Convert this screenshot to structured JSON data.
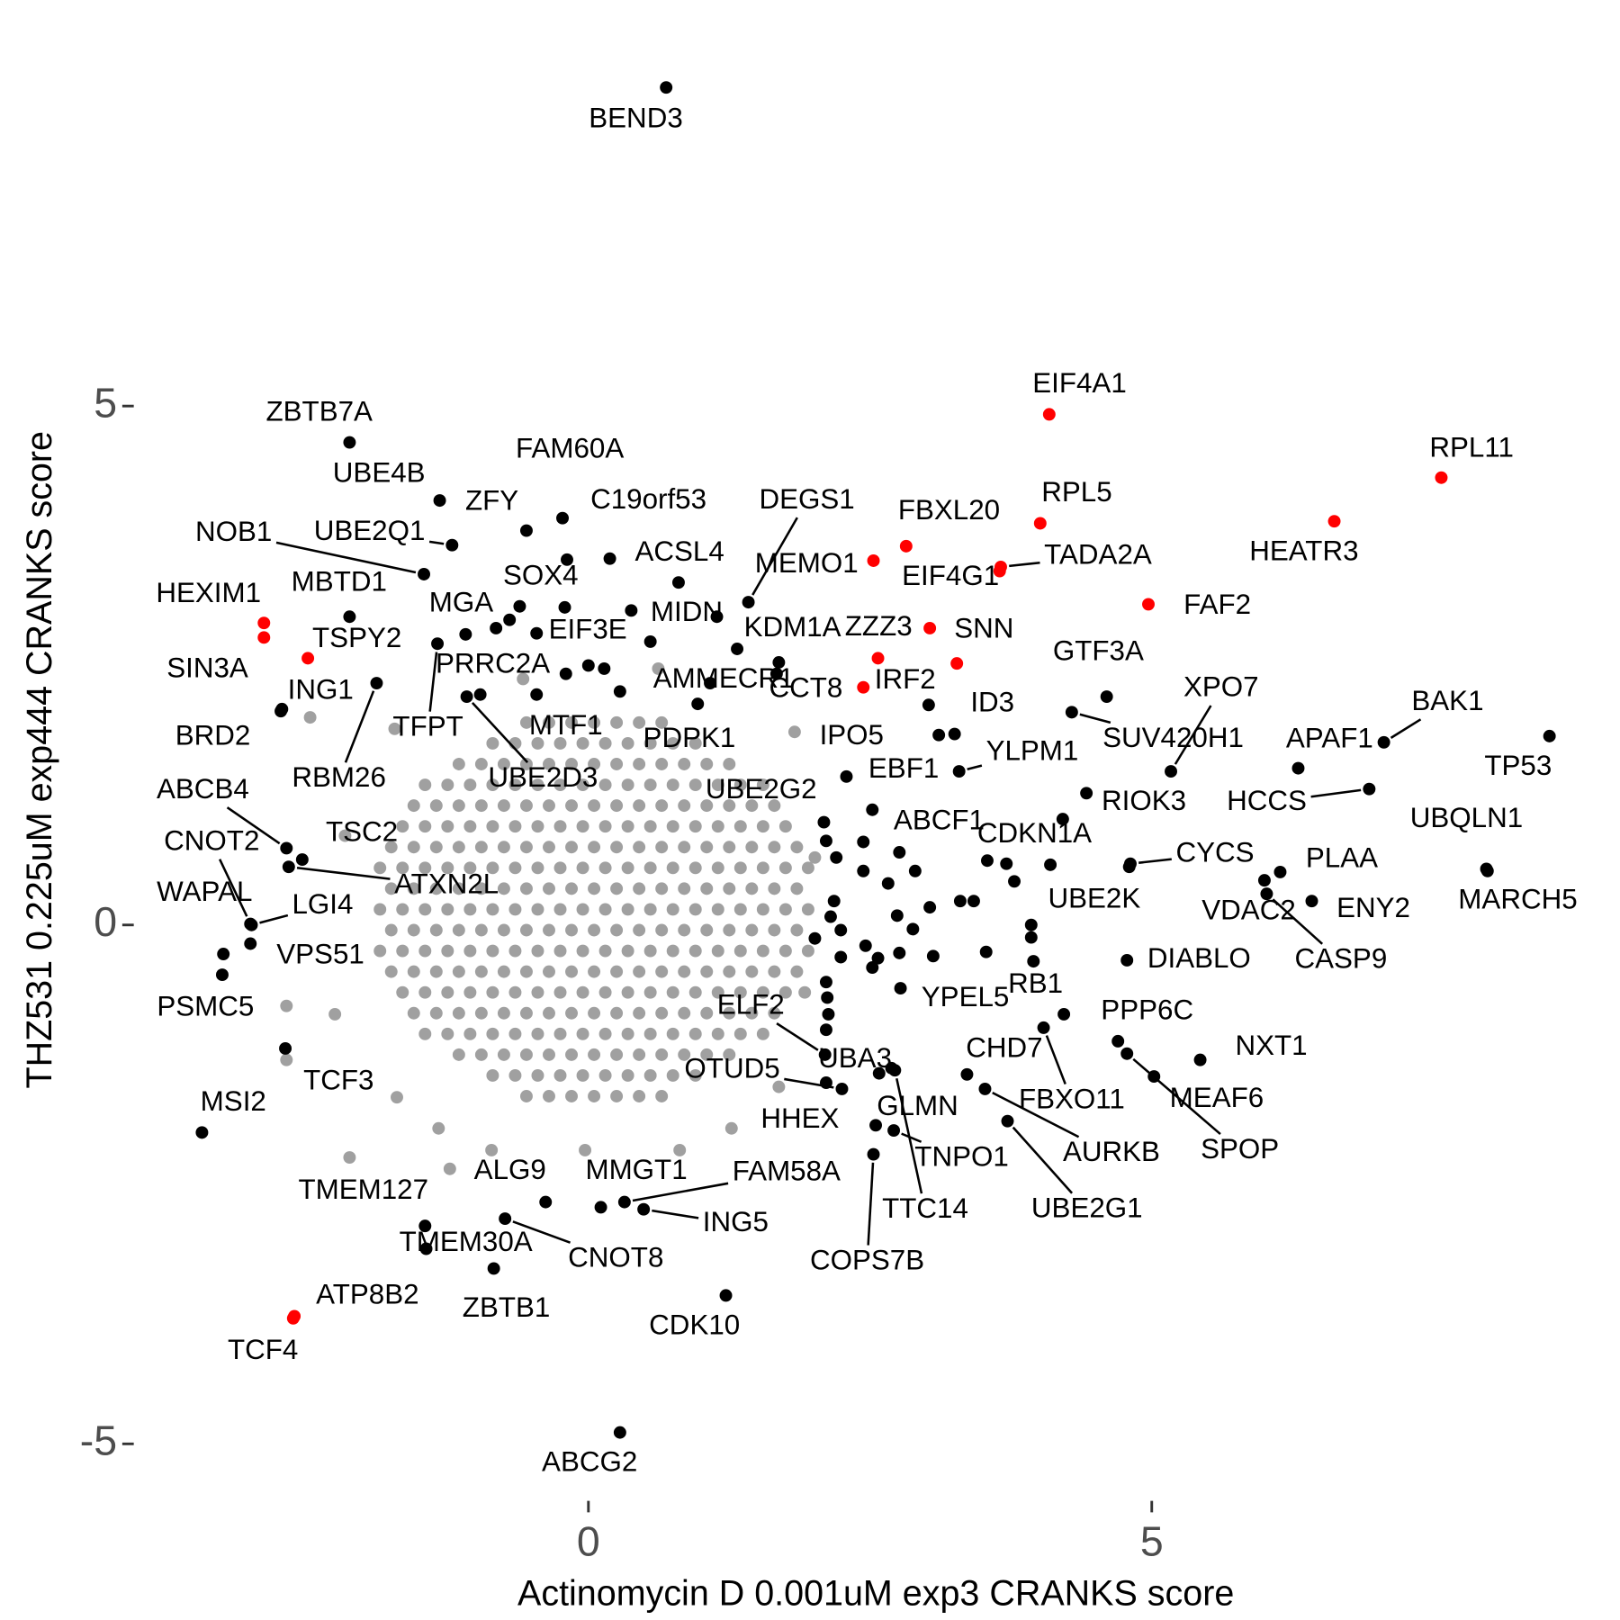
{
  "chart_data": {
    "type": "scatter",
    "xlabel": "Actinomycin D 0.001uM exp3 CRANKS score",
    "ylabel": "THZ531 0.225uM exp444 CRANKS score",
    "xlim": [
      -4,
      9
    ],
    "ylim": [
      -5.4,
      8.4
    ],
    "xticks": [
      0,
      5
    ],
    "yticks": [
      -5,
      0,
      5
    ],
    "grid": false,
    "series": [
      {
        "color": "#a0a0a0",
        "x": [
          -0.55,
          -0.35,
          -0.15,
          0.05,
          0.25,
          0.45,
          0.65,
          -0.85,
          -0.65,
          -0.45,
          -0.25,
          -0.05,
          0.15,
          0.35,
          0.55,
          0.75,
          0.95,
          -1.15,
          -0.95,
          -0.75,
          -0.55,
          -0.35,
          -0.15,
          0.05,
          0.25,
          0.45,
          0.65,
          0.85,
          1.05,
          1.25,
          -1.45,
          -1.25,
          -1.05,
          -0.85,
          -0.65,
          -0.45,
          -0.25,
          -0.05,
          0.15,
          0.35,
          0.55,
          0.75,
          0.95,
          1.15,
          1.35,
          1.55,
          -1.55,
          -1.35,
          -1.15,
          -0.95,
          -0.75,
          -0.55,
          -0.35,
          -0.15,
          0.05,
          0.25,
          0.45,
          0.65,
          0.85,
          1.05,
          1.25,
          1.45,
          1.65,
          -1.65,
          -1.45,
          -1.25,
          -1.05,
          -0.85,
          -0.65,
          -0.45,
          -0.25,
          -0.05,
          0.15,
          0.35,
          0.55,
          0.75,
          0.95,
          1.15,
          1.35,
          1.55,
          1.75,
          -1.75,
          -1.55,
          -1.35,
          -1.15,
          -0.95,
          -0.75,
          -0.55,
          -0.35,
          -0.15,
          0.05,
          0.25,
          0.45,
          0.65,
          0.85,
          1.05,
          1.25,
          1.45,
          1.65,
          1.85,
          -1.85,
          -1.65,
          -1.45,
          -1.25,
          -1.05,
          -0.85,
          -0.65,
          -0.45,
          -0.25,
          -0.05,
          0.15,
          0.35,
          0.55,
          0.75,
          0.95,
          1.15,
          1.35,
          1.55,
          1.75,
          1.95,
          -1.75,
          -1.55,
          -1.35,
          -1.15,
          -0.95,
          -0.75,
          -0.55,
          -0.35,
          -0.15,
          0.05,
          0.25,
          0.45,
          0.65,
          0.85,
          1.05,
          1.25,
          1.45,
          1.65,
          1.85,
          -1.85,
          -1.65,
          -1.45,
          -1.25,
          -1.05,
          -0.85,
          -0.65,
          -0.45,
          -0.25,
          -0.05,
          0.15,
          0.35,
          0.55,
          0.75,
          0.95,
          1.15,
          1.35,
          1.55,
          1.75,
          1.95,
          -1.75,
          -1.55,
          -1.35,
          -1.15,
          -0.95,
          -0.75,
          -0.55,
          -0.35,
          -0.15,
          0.05,
          0.25,
          0.45,
          0.65,
          0.85,
          1.05,
          1.25,
          1.45,
          1.65,
          1.85,
          -1.85,
          -1.65,
          -1.45,
          -1.25,
          -1.05,
          -0.85,
          -0.65,
          -0.45,
          -0.25,
          -0.05,
          0.15,
          0.35,
          0.55,
          0.75,
          0.95,
          1.15,
          1.35,
          1.55,
          1.75,
          1.95,
          -1.75,
          -1.55,
          -1.35,
          -1.15,
          -0.95,
          -0.75,
          -0.55,
          -0.35,
          -0.15,
          0.05,
          0.25,
          0.45,
          0.65,
          0.85,
          1.05,
          1.25,
          1.45,
          1.65,
          1.85,
          -1.65,
          -1.45,
          -1.25,
          -1.05,
          -0.85,
          -0.65,
          -0.45,
          -0.25,
          -0.05,
          0.15,
          0.35,
          0.55,
          0.75,
          0.95,
          1.15,
          1.35,
          1.55,
          1.75,
          -1.55,
          -1.35,
          -1.15,
          -0.95,
          -0.75,
          -0.55,
          -0.35,
          -0.15,
          0.05,
          0.25,
          0.45,
          0.65,
          0.85,
          1.05,
          1.25,
          1.45,
          1.65,
          -1.45,
          -1.25,
          -1.05,
          -0.85,
          -0.65,
          -0.45,
          -0.25,
          -0.05,
          0.15,
          0.35,
          0.55,
          0.75,
          0.95,
          1.15,
          1.35,
          1.55,
          -1.15,
          -0.95,
          -0.75,
          -0.55,
          -0.35,
          -0.15,
          0.05,
          0.25,
          0.45,
          0.65,
          0.85,
          1.05,
          1.25,
          -0.85,
          -0.65,
          -0.45,
          -0.25,
          -0.05,
          0.15,
          0.35,
          0.55,
          0.75,
          0.95,
          -0.55,
          -0.35,
          -0.15,
          0.05,
          0.25,
          0.45,
          0.65,
          -2.47,
          -2.68,
          -2.68,
          -2.12,
          -1.23,
          -1.72,
          -1.7,
          -1.33,
          1.83,
          1.69,
          1.27,
          -2.16,
          -2.25,
          2.01,
          1.92,
          -0.58,
          0.62,
          -0.03,
          -0.86,
          0.81
        ],
        "y": [
          -1.65,
          -1.65,
          -1.65,
          -1.65,
          -1.65,
          -1.65,
          -1.65,
          -1.45,
          -1.45,
          -1.45,
          -1.45,
          -1.45,
          -1.45,
          -1.45,
          -1.45,
          -1.45,
          -1.45,
          -1.25,
          -1.25,
          -1.25,
          -1.25,
          -1.25,
          -1.25,
          -1.25,
          -1.25,
          -1.25,
          -1.25,
          -1.25,
          -1.25,
          -1.25,
          -1.05,
          -1.05,
          -1.05,
          -1.05,
          -1.05,
          -1.05,
          -1.05,
          -1.05,
          -1.05,
          -1.05,
          -1.05,
          -1.05,
          -1.05,
          -1.05,
          -1.05,
          -1.05,
          -0.85,
          -0.85,
          -0.85,
          -0.85,
          -0.85,
          -0.85,
          -0.85,
          -0.85,
          -0.85,
          -0.85,
          -0.85,
          -0.85,
          -0.85,
          -0.85,
          -0.85,
          -0.85,
          -0.85,
          -0.65,
          -0.65,
          -0.65,
          -0.65,
          -0.65,
          -0.65,
          -0.65,
          -0.65,
          -0.65,
          -0.65,
          -0.65,
          -0.65,
          -0.65,
          -0.65,
          -0.65,
          -0.65,
          -0.65,
          -0.65,
          -0.45,
          -0.45,
          -0.45,
          -0.45,
          -0.45,
          -0.45,
          -0.45,
          -0.45,
          -0.45,
          -0.45,
          -0.45,
          -0.45,
          -0.45,
          -0.45,
          -0.45,
          -0.45,
          -0.45,
          -0.45,
          -0.45,
          -0.25,
          -0.25,
          -0.25,
          -0.25,
          -0.25,
          -0.25,
          -0.25,
          -0.25,
          -0.25,
          -0.25,
          -0.25,
          -0.25,
          -0.25,
          -0.25,
          -0.25,
          -0.25,
          -0.25,
          -0.25,
          -0.25,
          -0.25,
          -0.05,
          -0.05,
          -0.05,
          -0.05,
          -0.05,
          -0.05,
          -0.05,
          -0.05,
          -0.05,
          -0.05,
          -0.05,
          -0.05,
          -0.05,
          -0.05,
          -0.05,
          -0.05,
          -0.05,
          -0.05,
          -0.05,
          0.15,
          0.15,
          0.15,
          0.15,
          0.15,
          0.15,
          0.15,
          0.15,
          0.15,
          0.15,
          0.15,
          0.15,
          0.15,
          0.15,
          0.15,
          0.15,
          0.15,
          0.15,
          0.15,
          0.15,
          0.35,
          0.35,
          0.35,
          0.35,
          0.35,
          0.35,
          0.35,
          0.35,
          0.35,
          0.35,
          0.35,
          0.35,
          0.35,
          0.35,
          0.35,
          0.35,
          0.35,
          0.35,
          0.35,
          0.55,
          0.55,
          0.55,
          0.55,
          0.55,
          0.55,
          0.55,
          0.55,
          0.55,
          0.55,
          0.55,
          0.55,
          0.55,
          0.55,
          0.55,
          0.55,
          0.55,
          0.55,
          0.55,
          0.55,
          0.75,
          0.75,
          0.75,
          0.75,
          0.75,
          0.75,
          0.75,
          0.75,
          0.75,
          0.75,
          0.75,
          0.75,
          0.75,
          0.75,
          0.75,
          0.75,
          0.75,
          0.75,
          0.75,
          0.95,
          0.95,
          0.95,
          0.95,
          0.95,
          0.95,
          0.95,
          0.95,
          0.95,
          0.95,
          0.95,
          0.95,
          0.95,
          0.95,
          0.95,
          0.95,
          0.95,
          0.95,
          1.15,
          1.15,
          1.15,
          1.15,
          1.15,
          1.15,
          1.15,
          1.15,
          1.15,
          1.15,
          1.15,
          1.15,
          1.15,
          1.15,
          1.15,
          1.15,
          1.15,
          1.35,
          1.35,
          1.35,
          1.35,
          1.35,
          1.35,
          1.35,
          1.35,
          1.35,
          1.35,
          1.35,
          1.35,
          1.35,
          1.35,
          1.35,
          1.35,
          1.55,
          1.55,
          1.55,
          1.55,
          1.55,
          1.55,
          1.55,
          1.55,
          1.55,
          1.55,
          1.55,
          1.55,
          1.55,
          1.75,
          1.75,
          1.75,
          1.75,
          1.75,
          1.75,
          1.75,
          1.75,
          1.75,
          1.75,
          1.95,
          1.95,
          1.95,
          1.95,
          1.95,
          1.95,
          1.95,
          2.0,
          -0.78,
          -1.3,
          -2.24,
          -2.35,
          1.89,
          -1.66,
          -1.96,
          1.86,
          -1.56,
          -1.96,
          0.86,
          -0.86,
          0.65,
          -0.65,
          2.37,
          2.47,
          -2.17,
          -2.17,
          -2.17
        ]
      },
      {
        "color": "#000000",
        "x": [
          2.11,
          2.2,
          2.44,
          2.44,
          2.18,
          2.15,
          2.24,
          2.01,
          2.24,
          2.46,
          2.57,
          2.52,
          2.76,
          2.9,
          2.66,
          2.74,
          2.88,
          3.03,
          3.3,
          3.42,
          3.06,
          3.53,
          3.54,
          3.71,
          3.78,
          3.93,
          3.93,
          4.8,
          2.11,
          2.12,
          2.13,
          2.11,
          2.69,
          3.36,
          -0.82,
          -0.7,
          -1.09,
          -0.2,
          0.0,
          0.14,
          0.28,
          0.55,
          1.14,
          1.69,
          1.67,
          -0.19,
          3.25,
          3.11
        ],
        "y": [
          0.81,
          0.65,
          0.8,
          0.52,
          0.23,
          0.08,
          -0.05,
          -0.13,
          -0.31,
          -0.2,
          -0.32,
          -0.41,
          -0.27,
          0.52,
          0.4,
          0.09,
          -0.04,
          0.17,
          0.23,
          0.23,
          -0.3,
          -0.26,
          0.62,
          0.59,
          0.42,
          0.0,
          -0.12,
          0.56,
          -0.55,
          -0.7,
          -0.86,
          -1.01,
          -1.38,
          -1.44,
          2.86,
          2.94,
          2.8,
          2.42,
          2.5,
          2.47,
          2.25,
          2.73,
          2.97,
          2.53,
          2.42,
          3.52,
          1.84,
          1.83
        ]
      },
      {
        "color": "#000000",
        "labels": [
          "BEND3",
          "ABCG2",
          "ZBTB7A",
          "UBE4B",
          "ZFY",
          "FAM60A",
          "C19orf53",
          "NOB1",
          "UBE2Q1",
          "ACSL4",
          "DEGS1",
          "MBTD1",
          "SOX4",
          "MGA",
          "EIF3E",
          "MIDN",
          "KDM1A",
          "AMMECR1",
          "PRRC2A",
          "ING1",
          "BRD2",
          "RBM26",
          "TFPT",
          "MTF1",
          "PDPK1",
          "UBE2D3",
          "IPO5",
          "EBF1",
          "UBE2G2",
          "ABCF1",
          "ID3",
          "YLPM1",
          "GTF3A",
          "XPO7",
          "SUV420H1",
          "BAK1",
          "APAF1",
          "TP53",
          "HCCS",
          "UBQLN1",
          "MARCH5",
          "RIOK3",
          "CDKN1A",
          "CYCS",
          "PLAA",
          "VDAC2",
          "ENY2",
          "CASP9",
          "UBE2K",
          "DIABLO",
          "RB1",
          "YPEL5",
          "PPP6C",
          "NXT1",
          "MEAF6",
          "SPOP",
          "CHD7",
          "FBXO11",
          "AURKB",
          "TNPO1",
          "UBE2G1",
          "GLMN",
          "TTC14",
          "COPS7B",
          "ELF2",
          "UBA3",
          "OTUD5",
          "HHEX",
          "FAM58A",
          "ING5",
          "MMGT1",
          "ALG9",
          "CNOT8",
          "CDK10",
          "ZBTB1",
          "TMEM30A",
          "TMEM127",
          "MSI2",
          "TCF3",
          "PSMC5",
          "VPS51",
          "WAPAL",
          "LGI4",
          "CNOT2",
          "ABCB4",
          "TSC2",
          "ATXN2L"
        ],
        "x": [
          0.69,
          0.28,
          -2.12,
          -1.32,
          -0.55,
          -0.23,
          0.19,
          -1.46,
          -1.21,
          0.8,
          1.42,
          -2.12,
          -0.21,
          -0.61,
          -0.46,
          0.38,
          1.32,
          1.08,
          -0.96,
          -2.72,
          -2.73,
          -1.88,
          -1.34,
          -0.46,
          0.97,
          -1.08,
          2.29,
          2.52,
          2.09,
          2.76,
          3.02,
          3.29,
          4.6,
          5.17,
          4.29,
          7.06,
          6.3,
          8.53,
          6.93,
          7.97,
          7.98,
          4.42,
          4.21,
          4.81,
          6.14,
          6.0,
          6.42,
          6.02,
          4.1,
          4.78,
          3.95,
          2.77,
          4.7,
          5.43,
          5.02,
          4.78,
          4.22,
          4.04,
          3.52,
          2.71,
          3.72,
          2.55,
          2.72,
          2.53,
          2.1,
          2.58,
          2.25,
          2.11,
          0.32,
          0.49,
          0.11,
          -0.38,
          -0.74,
          1.22,
          -0.84,
          -1.44,
          -1.45,
          -3.43,
          -2.69,
          -3.25,
          -3.0,
          -3.24,
          -2.99,
          -3.0,
          -2.68,
          -2.54,
          -2.66
        ],
        "y": [
          8.07,
          -4.89,
          4.65,
          4.09,
          3.8,
          3.92,
          3.53,
          3.38,
          3.66,
          3.3,
          3.11,
          2.97,
          3.06,
          3.07,
          2.81,
          3.03,
          2.66,
          2.33,
          2.22,
          2.08,
          2.06,
          2.33,
          2.71,
          2.22,
          2.13,
          2.2,
          1.43,
          1.11,
          0.99,
          0.7,
          2.12,
          1.48,
          2.2,
          1.48,
          2.05,
          1.76,
          1.51,
          1.82,
          1.31,
          0.54,
          0.52,
          1.27,
          1.02,
          0.59,
          0.51,
          0.43,
          0.23,
          0.3,
          0.58,
          -0.34,
          -0.35,
          -0.61,
          -1.12,
          -1.3,
          -1.46,
          -1.24,
          -0.86,
          -0.99,
          -1.58,
          -1.98,
          -1.89,
          -1.93,
          -1.4,
          -2.21,
          -1.25,
          -1.43,
          -1.58,
          -1.52,
          -2.67,
          -2.74,
          -2.72,
          -2.67,
          -2.83,
          -3.57,
          -3.31,
          -3.12,
          -2.9,
          -2.0,
          -1.19,
          -0.48,
          -0.18,
          -0.28,
          0.0,
          0.01,
          0.74,
          0.63,
          0.56
        ]
      },
      {
        "color": "#ff0000",
        "labels": [
          "EIF4A1",
          "RPL11",
          "RPL5",
          "HEATR3",
          "FBXL20",
          "MEMO1",
          "TADA2A",
          "EIF4G1",
          "FAF2",
          "HEXIM1",
          "SIN3A",
          "TSPY2",
          "ZZZ3",
          "SNN",
          "IRF2",
          "CCT8",
          "TCF4",
          "ATP8B2"
        ],
        "x": [
          4.09,
          7.57,
          4.01,
          6.62,
          2.82,
          2.53,
          3.66,
          3.65,
          4.97,
          -2.88,
          -2.88,
          -2.49,
          3.03,
          3.27,
          2.57,
          2.44,
          -2.62,
          -2.61
        ],
        "y": [
          4.92,
          4.31,
          3.87,
          3.89,
          3.65,
          3.51,
          3.45,
          3.41,
          3.09,
          2.91,
          2.77,
          2.57,
          2.86,
          2.52,
          2.57,
          2.29,
          -3.79,
          -3.77
        ]
      }
    ]
  }
}
